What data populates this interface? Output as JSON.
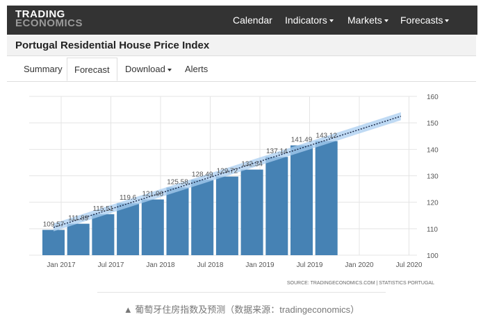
{
  "nav": {
    "logo_top": "TRADING",
    "logo_bottom": "ECONOMICS",
    "menu": [
      "Calendar",
      "Indicators",
      "Markets",
      "Forecasts"
    ]
  },
  "header": {
    "title": "Portugal Residential House Price Index"
  },
  "tabs": [
    "Summary",
    "Forecast",
    "Download",
    "Alerts"
  ],
  "chart_data": {
    "type": "bar",
    "color": "#4682b4",
    "categories": [
      null,
      null,
      null,
      null,
      null,
      null,
      null,
      null,
      null,
      null,
      null,
      null
    ],
    "values": [
      109.57,
      111.89,
      115.51,
      119.6,
      121.06,
      125.58,
      128.49,
      129.72,
      132.34,
      137.14,
      141.49,
      143.12
    ],
    "xticks": [
      "Jan 2017",
      "Jul 2017",
      "Jan 2018",
      "Jul 2018",
      "Jan 2019",
      "Jul 2019",
      "Jan 2020",
      "Jul 2020"
    ],
    "ylim": [
      100,
      160
    ],
    "yticks": [
      100,
      110,
      120,
      130,
      140,
      150,
      160
    ],
    "grid": true,
    "trend": {
      "values": [
        110.5,
        152.5
      ],
      "band": 1.5,
      "color": "#1a2a4a",
      "band_color": "#a9cdf0"
    },
    "source": "SOURCE: TRADINGECONOMICS.COM  |  STATISTICS PORTUGAL"
  },
  "caption": "▲ 葡萄牙住房指数及预测（数据来源：tradingeconomics）"
}
